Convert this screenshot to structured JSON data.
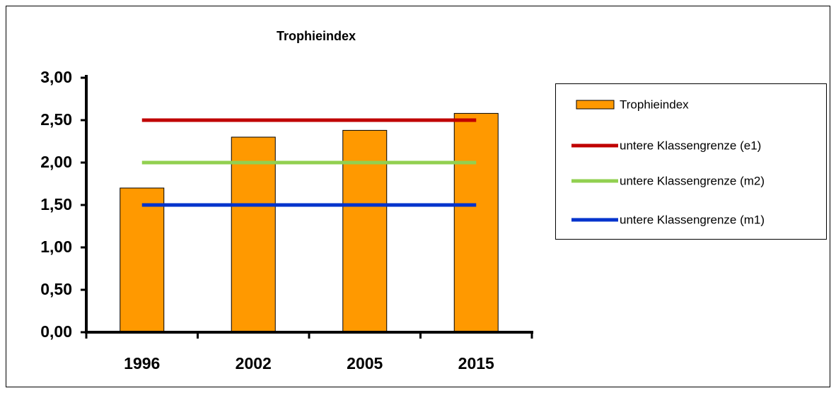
{
  "chart_data": {
    "type": "bar",
    "title": "Trophieindex",
    "categories": [
      "1996",
      "2002",
      "2005",
      "2015"
    ],
    "series": [
      {
        "name": "Trophieindex",
        "type": "bar",
        "color": "#ff9900",
        "values": [
          1.7,
          2.3,
          2.38,
          2.58
        ]
      },
      {
        "name": "untere Klassengrenze (e1)",
        "type": "line",
        "color": "#c00000",
        "values": [
          2.5,
          2.5,
          2.5,
          2.5
        ]
      },
      {
        "name": "untere Klassengrenze (m2)",
        "type": "line",
        "color": "#92d050",
        "values": [
          2.0,
          2.0,
          2.0,
          2.0
        ]
      },
      {
        "name": "untere Klassengrenze (m1)",
        "type": "line",
        "color": "#0033cc",
        "values": [
          1.5,
          1.5,
          1.5,
          1.5
        ]
      }
    ],
    "ylim": [
      0,
      3
    ],
    "yticks": [
      {
        "value": 0,
        "label": "0,00"
      },
      {
        "value": 0.5,
        "label": "0,50"
      },
      {
        "value": 1,
        "label": "1,00"
      },
      {
        "value": 1.5,
        "label": "1,50"
      },
      {
        "value": 2,
        "label": "2,00"
      },
      {
        "value": 2.5,
        "label": "2,50"
      },
      {
        "value": 3,
        "label": "3,00"
      }
    ],
    "legend": "right"
  }
}
